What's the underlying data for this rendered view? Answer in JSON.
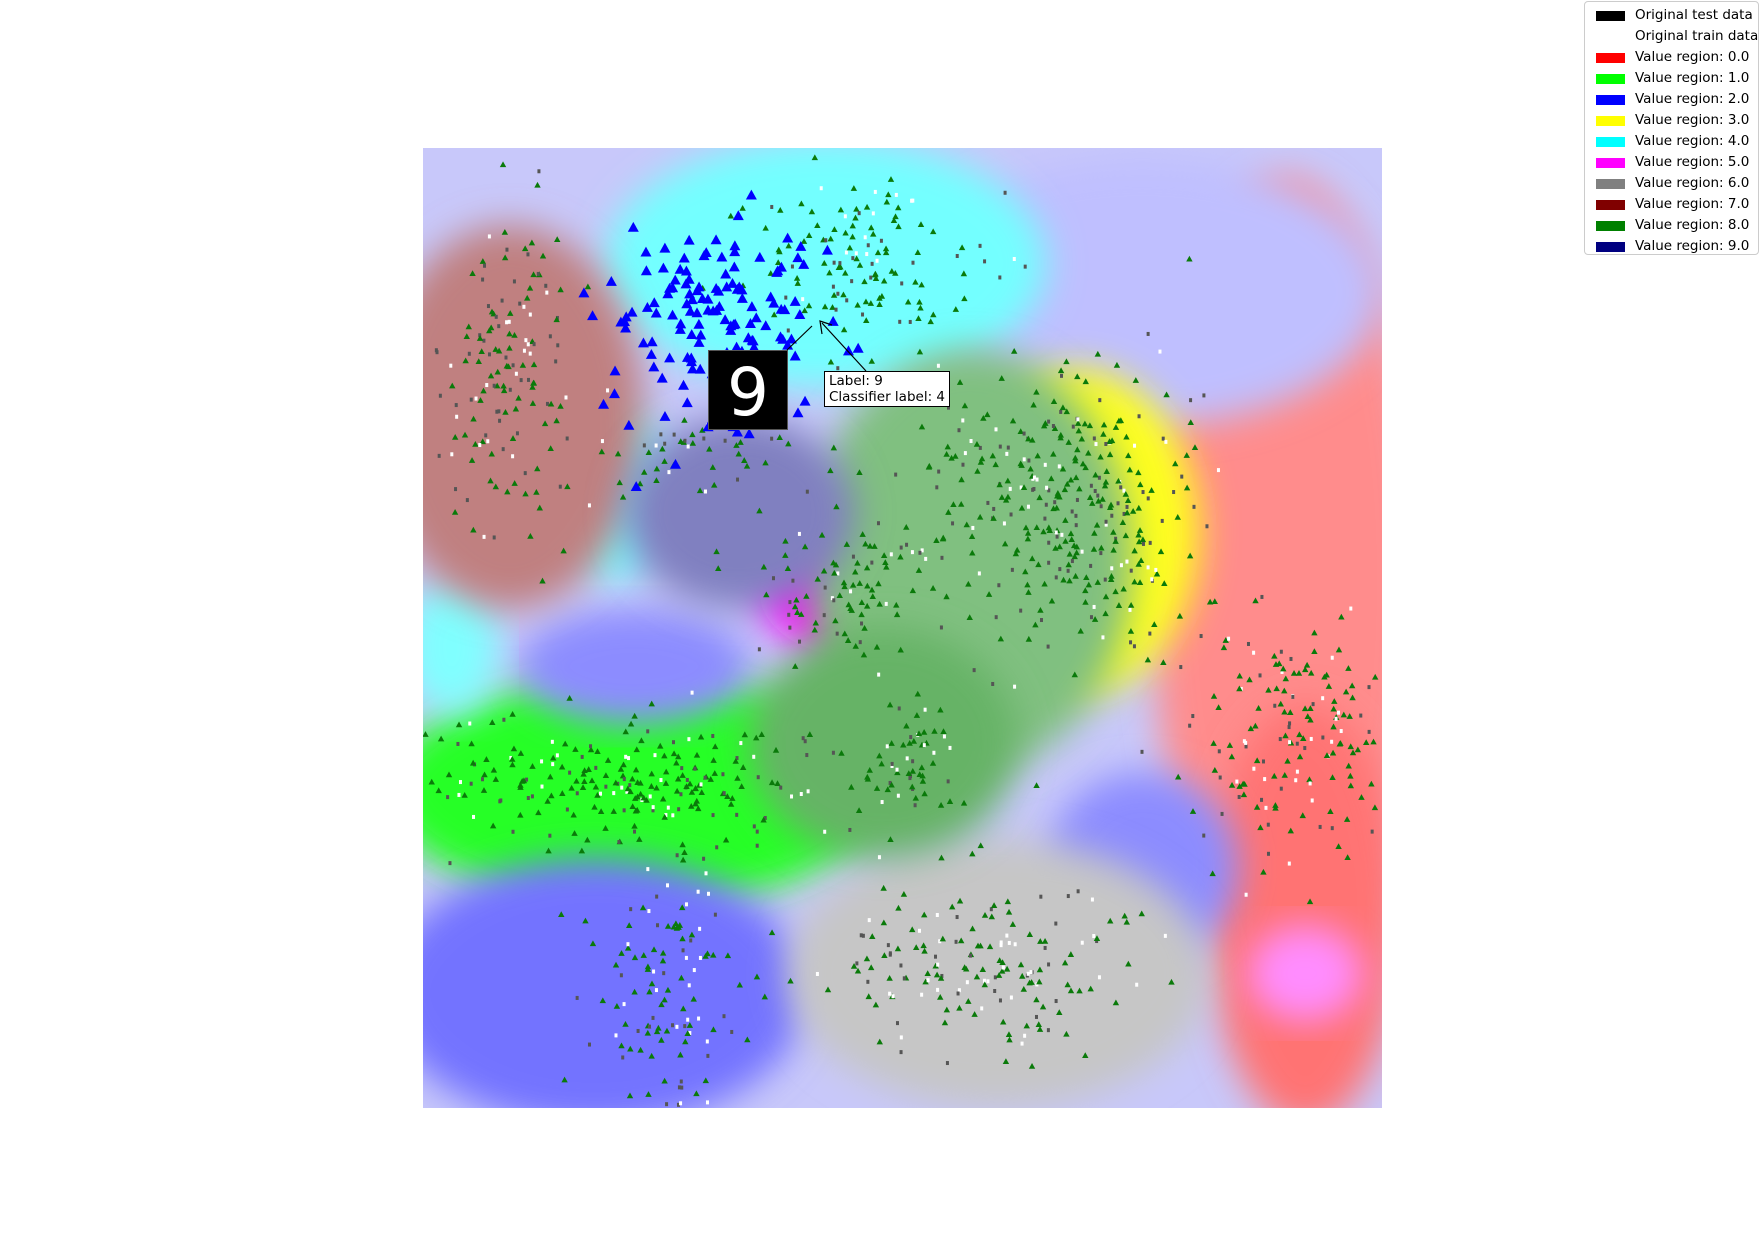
{
  "colors": {
    "class_0": "#ff0000",
    "class_1": "#00ff00",
    "class_2": "#0000ff",
    "class_3": "#ffff00",
    "class_4": "#00ffff",
    "class_5": "#ff00ff",
    "class_6": "#808080",
    "class_7": "#800000",
    "class_8": "#008000",
    "class_9": "#000080",
    "test_marker": "#000000",
    "train_marker": "#ffffff"
  },
  "legend": {
    "entries": [
      {
        "label": "Original test data",
        "color": "#000000"
      },
      {
        "label": "Original train data",
        "color": "#ffffff"
      },
      {
        "label": "Value region: 0.0",
        "color": "#ff0000"
      },
      {
        "label": "Value region: 1.0",
        "color": "#00ff00"
      },
      {
        "label": "Value region: 2.0",
        "color": "#0000ff"
      },
      {
        "label": "Value region: 3.0",
        "color": "#ffff00"
      },
      {
        "label": "Value region: 4.0",
        "color": "#00ffff"
      },
      {
        "label": "Value region: 5.0",
        "color": "#ff00ff"
      },
      {
        "label": "Value region: 6.0",
        "color": "#808080"
      },
      {
        "label": "Value region: 7.0",
        "color": "#800000"
      },
      {
        "label": "Value region: 8.0",
        "color": "#008000"
      },
      {
        "label": "Value region: 9.0",
        "color": "#000080"
      }
    ]
  },
  "annotation": {
    "line1": "Label: 9",
    "line2": "Classifier label: 4",
    "digit": "9"
  },
  "chart_data": {
    "type": "scatter",
    "title": "",
    "xlabel": "",
    "ylabel": "",
    "axes_visible": false,
    "legend_placement": "top-right",
    "xlim": [
      0,
      1
    ],
    "ylim": [
      0,
      1
    ],
    "background": "decision-region map over classes 0.0–9.0",
    "regions": [
      {
        "class": 0.0,
        "color": "#ff0000",
        "center": [
          0.88,
          0.55
        ]
      },
      {
        "class": 1.0,
        "color": "#00ff00",
        "center": [
          0.22,
          0.33
        ]
      },
      {
        "class": 2.0,
        "color": "#0000ff",
        "center": [
          0.25,
          0.13
        ]
      },
      {
        "class": 3.0,
        "color": "#ffff00",
        "center": [
          0.66,
          0.58
        ]
      },
      {
        "class": 4.0,
        "color": "#00ffff",
        "center": [
          0.4,
          0.85
        ]
      },
      {
        "class": 5.0,
        "color": "#ff00ff",
        "center": [
          0.45,
          0.54
        ]
      },
      {
        "class": 6.0,
        "color": "#808080",
        "center": [
          0.58,
          0.15
        ]
      },
      {
        "class": 7.0,
        "color": "#800000",
        "center": [
          0.08,
          0.75
        ]
      },
      {
        "class": 8.0,
        "color": "#008000",
        "center": [
          0.53,
          0.42
        ]
      },
      {
        "class": 9.0,
        "color": "#000080",
        "center": [
          0.33,
          0.65
        ]
      }
    ],
    "clusters": [
      {
        "center": [
          0.09,
          0.76
        ],
        "spread": [
          0.035,
          0.09
        ],
        "count": 150
      },
      {
        "center": [
          0.46,
          0.88
        ],
        "spread": [
          0.06,
          0.05
        ],
        "count": 140
      },
      {
        "center": [
          0.29,
          0.69
        ],
        "spread": [
          0.05,
          0.03
        ],
        "count": 60
      },
      {
        "center": [
          0.62,
          0.67
        ],
        "spread": [
          0.06,
          0.05
        ],
        "count": 110
      },
      {
        "center": [
          0.45,
          0.54
        ],
        "spread": [
          0.06,
          0.035
        ],
        "count": 100
      },
      {
        "center": [
          0.7,
          0.61
        ],
        "spread": [
          0.06,
          0.08
        ],
        "count": 230
      },
      {
        "center": [
          0.91,
          0.38
        ],
        "spread": [
          0.06,
          0.07
        ],
        "count": 170
      },
      {
        "center": [
          0.22,
          0.34
        ],
        "spread": [
          0.11,
          0.035
        ],
        "count": 240
      },
      {
        "center": [
          0.51,
          0.36
        ],
        "spread": [
          0.03,
          0.04
        ],
        "count": 60
      },
      {
        "center": [
          0.58,
          0.15
        ],
        "spread": [
          0.08,
          0.045
        ],
        "count": 170
      },
      {
        "center": [
          0.25,
          0.12
        ],
        "spread": [
          0.04,
          0.08
        ],
        "count": 130
      }
    ],
    "highlighted_points": {
      "class": 2.0,
      "marker": "triangle",
      "center": [
        0.3,
        0.82
      ],
      "spread": [
        0.06,
        0.055
      ],
      "count": 140
    },
    "annotated_point": {
      "x": 0.42,
      "y": 0.82,
      "label": 9,
      "classifier_label": 4
    }
  }
}
